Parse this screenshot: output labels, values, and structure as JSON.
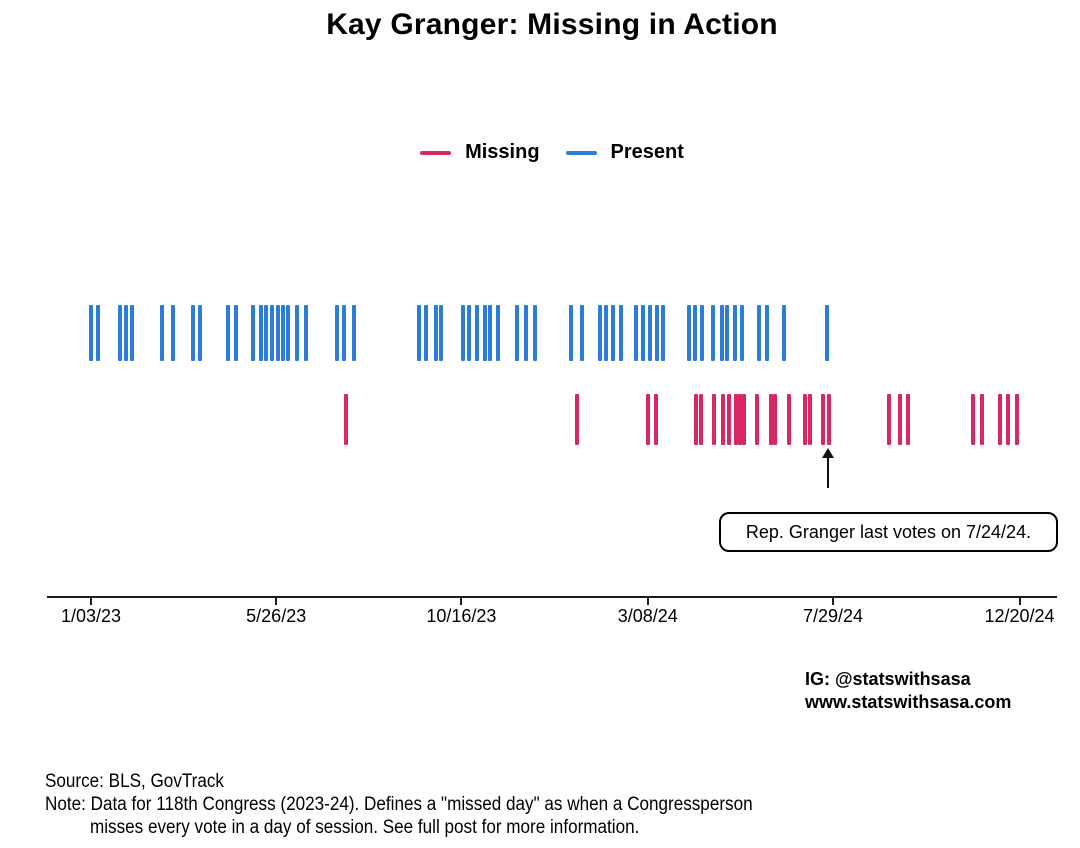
{
  "title": "Kay Granger: Missing in Action",
  "legend": [
    {
      "label": "Missing",
      "color": "#d82765"
    },
    {
      "label": "Present",
      "color": "#2e7cd9"
    }
  ],
  "chart_data": {
    "type": "rug",
    "description": "Event timeline (rug plot) of days of House session in the 118th Congress; top row = days Rep. Kay Granger was present, bottom row = days she missed every vote.",
    "x_axis": {
      "label": "",
      "ticks": [
        "1/03/23",
        "5/26/23",
        "10/16/23",
        "3/08/24",
        "7/29/24",
        "12/20/24"
      ],
      "min": "1/03/23",
      "max": "12/20/24"
    },
    "grid": false,
    "legend_position": "top-center",
    "series": [
      {
        "name": "Present",
        "color": "#2e7cd9",
        "row": "top",
        "dates": [
          "1/3/23",
          "1/8/23",
          "1/25/23",
          "1/30/23",
          "2/4/23",
          "2/27/23",
          "3/7/23",
          "3/23/23",
          "3/28/23",
          "4/19/23",
          "4/25/23",
          "5/8/23",
          "5/14/23",
          "5/18/23",
          "5/23/23",
          "5/27/23",
          "5/31/23",
          "6/4/23",
          "6/11/23",
          "6/18/23",
          "7/12/23",
          "7/17/23",
          "7/25/23",
          "9/13/23",
          "9/19/23",
          "9/26/23",
          "9/30/23",
          "10/17/23",
          "10/22/23",
          "10/28/23",
          "11/3/23",
          "11/7/23",
          "11/13/23",
          "11/28/23",
          "12/5/23",
          "12/12/23",
          "1/9/24",
          "1/17/24",
          "1/31/24",
          "2/5/24",
          "2/10/24",
          "2/16/24",
          "2/28/24",
          "3/4/24",
          "3/10/24",
          "3/15/24",
          "3/20/24",
          "4/9/24",
          "4/13/24",
          "4/19/24",
          "4/27/24",
          "5/4/24",
          "5/8/24",
          "5/14/24",
          "5/20/24",
          "6/2/24",
          "6/8/24",
          "6/21/24",
          "7/24/24"
        ]
      },
      {
        "name": "Missing",
        "color": "#d82765",
        "row": "bottom",
        "dates": [
          "7/19/23",
          "1/13/24",
          "3/8/24",
          "3/14/24",
          "4/14/24",
          "4/18/24",
          "4/28/24",
          "5/5/24",
          "5/10/24",
          "5/15/24",
          "5/18/24",
          "5/21/24",
          "5/31/24",
          "6/11/24",
          "6/14/24",
          "6/25/24",
          "7/7/24",
          "7/11/24",
          "7/21/24",
          "7/26/24",
          "9/10/24",
          "9/19/24",
          "9/25/24",
          "11/14/24",
          "11/21/24",
          "12/5/24",
          "12/11/24",
          "12/18/24"
        ]
      }
    ],
    "annotation": {
      "text": "Rep. Granger last votes on 7/24/24.",
      "arrow_points_to_date": "7/25/24"
    }
  },
  "credits": {
    "instagram": "IG: @statswithsasa",
    "website": "www.statswithsasa.com"
  },
  "footnotes": [
    "Source: BLS, GovTrack",
    "Note: Data for 118th Congress (2023-24). Defines a \"missed day\" as when a Congressperson",
    "misses every vote in a day of session. See full post for more information."
  ]
}
